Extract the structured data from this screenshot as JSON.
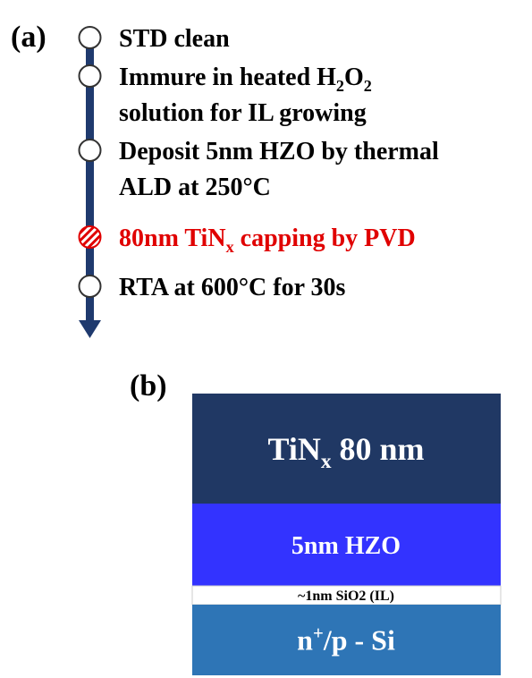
{
  "panel_a": {
    "label": "(a)",
    "steps": [
      {
        "lines": [
          [
            {
              "text": "STD clean"
            }
          ]
        ]
      },
      {
        "lines": [
          [
            {
              "text": "Immure in heated H"
            },
            {
              "text": "2",
              "script": "sub"
            },
            {
              "text": "O"
            },
            {
              "text": "2",
              "script": "sub"
            }
          ],
          [
            {
              "text": "solution for IL growing"
            }
          ]
        ]
      },
      {
        "lines": [
          [
            {
              "text": "Deposit 5nm HZO by thermal"
            }
          ],
          [
            {
              "text": "ALD at 250°C"
            }
          ]
        ]
      },
      {
        "lines": [
          [
            {
              "text": "80nm TiN"
            },
            {
              "text": "x",
              "script": "sub"
            },
            {
              "text": " capping by PVD"
            }
          ]
        ],
        "highlight": true
      },
      {
        "lines": [
          [
            {
              "text": "RTA at 600°C for 30s"
            }
          ]
        ]
      }
    ]
  },
  "panel_b": {
    "label": "(b)",
    "layers": [
      {
        "parts": [
          {
            "text": "TiN"
          },
          {
            "text": "x",
            "script": "sub"
          },
          {
            "text": " 80 nm"
          }
        ],
        "color": "#203864"
      },
      {
        "parts": [
          {
            "text": "5nm HZO"
          }
        ],
        "color": "#3333ff"
      },
      {
        "parts": [
          {
            "text": "~1nm SiO2 (IL)"
          }
        ],
        "color": "#ffffff"
      },
      {
        "parts": [
          {
            "text": "n"
          },
          {
            "text": "+",
            "script": "sup"
          },
          {
            "text": "/p - Si"
          }
        ],
        "color": "#2e75b6"
      }
    ]
  }
}
